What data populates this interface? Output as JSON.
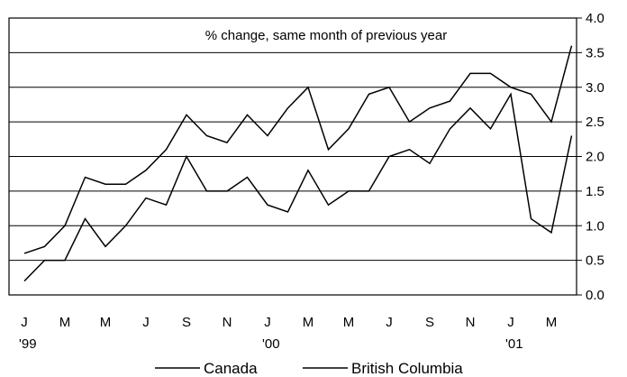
{
  "chart_data": {
    "type": "line",
    "title": "% change, same month of previous year",
    "x_labels": [
      "J",
      "",
      "M",
      "",
      "M",
      "",
      "J",
      "",
      "S",
      "",
      "N",
      "",
      "J",
      "",
      "M",
      "",
      "M",
      "",
      "J",
      "",
      "S",
      "",
      "N",
      "",
      "J",
      "",
      "M",
      ""
    ],
    "year_labels": [
      {
        "index": 0,
        "text": "'99"
      },
      {
        "index": 12,
        "text": "'00"
      },
      {
        "index": 24,
        "text": "'01"
      }
    ],
    "ylim": [
      0,
      4
    ],
    "y_ticks": [
      "0.0",
      "0.5",
      "1.0",
      "1.5",
      "2.0",
      "2.5",
      "3.0",
      "3.5",
      "4.0"
    ],
    "y_axis_side": "right",
    "grid": "horizontal",
    "legend_position": "bottom",
    "series": [
      {
        "name": "Canada",
        "values": [
          0.6,
          0.7,
          1.0,
          1.7,
          1.6,
          1.6,
          1.8,
          2.1,
          2.6,
          2.3,
          2.2,
          2.6,
          2.3,
          2.7,
          3.0,
          2.1,
          2.4,
          2.9,
          3.0,
          2.5,
          2.7,
          2.8,
          3.2,
          3.2,
          3.0,
          2.9,
          2.5,
          3.6
        ]
      },
      {
        "name": "British Columbia",
        "values": [
          0.2,
          0.5,
          0.5,
          1.1,
          0.7,
          1.0,
          1.4,
          1.3,
          2.0,
          1.5,
          1.5,
          1.7,
          1.3,
          1.2,
          1.8,
          1.3,
          1.5,
          1.5,
          2.0,
          2.1,
          1.9,
          2.4,
          2.7,
          2.4,
          2.9,
          1.1,
          0.9,
          2.3
        ]
      }
    ]
  }
}
